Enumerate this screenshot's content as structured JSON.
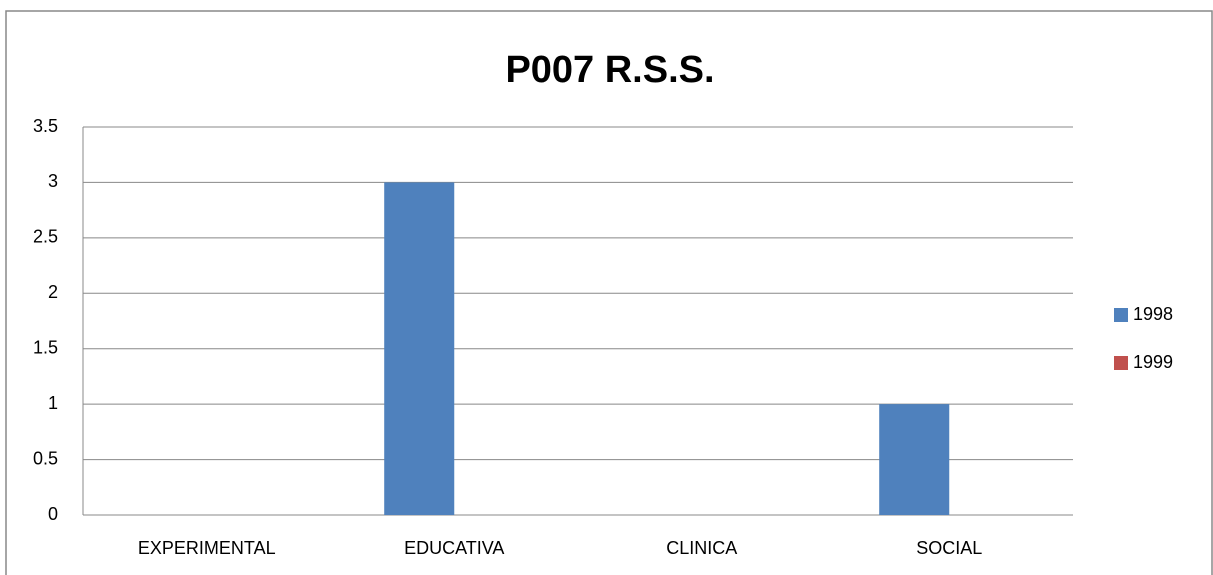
{
  "chart_data": {
    "type": "bar",
    "title": "P007 R.S.S.",
    "categories": [
      "EXPERIMENTAL",
      "EDUCATIVA",
      "CLINICA",
      "SOCIAL"
    ],
    "series": [
      {
        "name": "1998",
        "color": "#4f81bd",
        "values": [
          0,
          3,
          0,
          1
        ]
      },
      {
        "name": "1999",
        "color": "#c0504d",
        "values": [
          0,
          0,
          0,
          0
        ]
      }
    ],
    "ylim": [
      0,
      3.5
    ],
    "yticks": [
      0,
      0.5,
      1,
      1.5,
      2,
      2.5,
      3,
      3.5
    ],
    "grid": true,
    "legend": "right"
  }
}
